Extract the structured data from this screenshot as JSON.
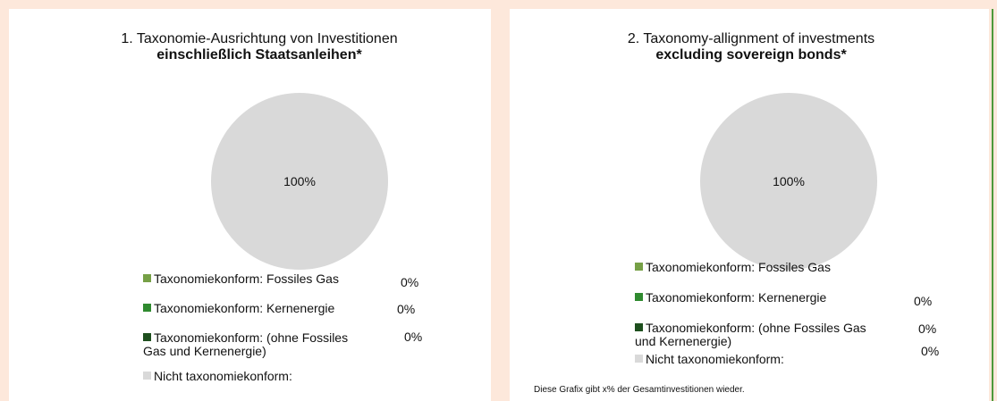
{
  "chart_data": [
    {
      "type": "pie",
      "title": "1. Taxonomie-Ausrichtung von Investitionen",
      "subtitle": "einschließlich Staatsanleihen*",
      "categories": [
        "Taxonomiekonform: Fossiles Gas",
        "Taxonomiekonform: Kernenergie",
        "Taxonomiekonform: (ohne Fossiles Gas und Kernenergie)",
        "Nicht taxonomiekonform:"
      ],
      "values": [
        0,
        0,
        0,
        100
      ],
      "value_labels": [
        "0%",
        "0%",
        "0%",
        "100%"
      ],
      "colors": [
        "#76a046",
        "#2f8a2f",
        "#1e4f1e",
        "#d9d9d9"
      ]
    },
    {
      "type": "pie",
      "title": "2. Taxonomy-allignment of investments",
      "subtitle": "excluding sovereign bonds*",
      "categories": [
        "Taxonomiekonform: Fossiles Gas",
        "Taxonomiekonform: Kernenergie",
        "Taxonomiekonform: (ohne Fossiles Gas und Kernenergie)",
        "Nicht taxonomiekonform:"
      ],
      "values": [
        0,
        0,
        0,
        100
      ],
      "value_labels": [
        "0%",
        "0%",
        "0%",
        "100%"
      ],
      "colors": [
        "#76a046",
        "#2f8a2f",
        "#1e4f1e",
        "#d9d9d9"
      ],
      "note": "Diese Grafix gibt x% der Gesamtinvestitionen wieder."
    }
  ]
}
